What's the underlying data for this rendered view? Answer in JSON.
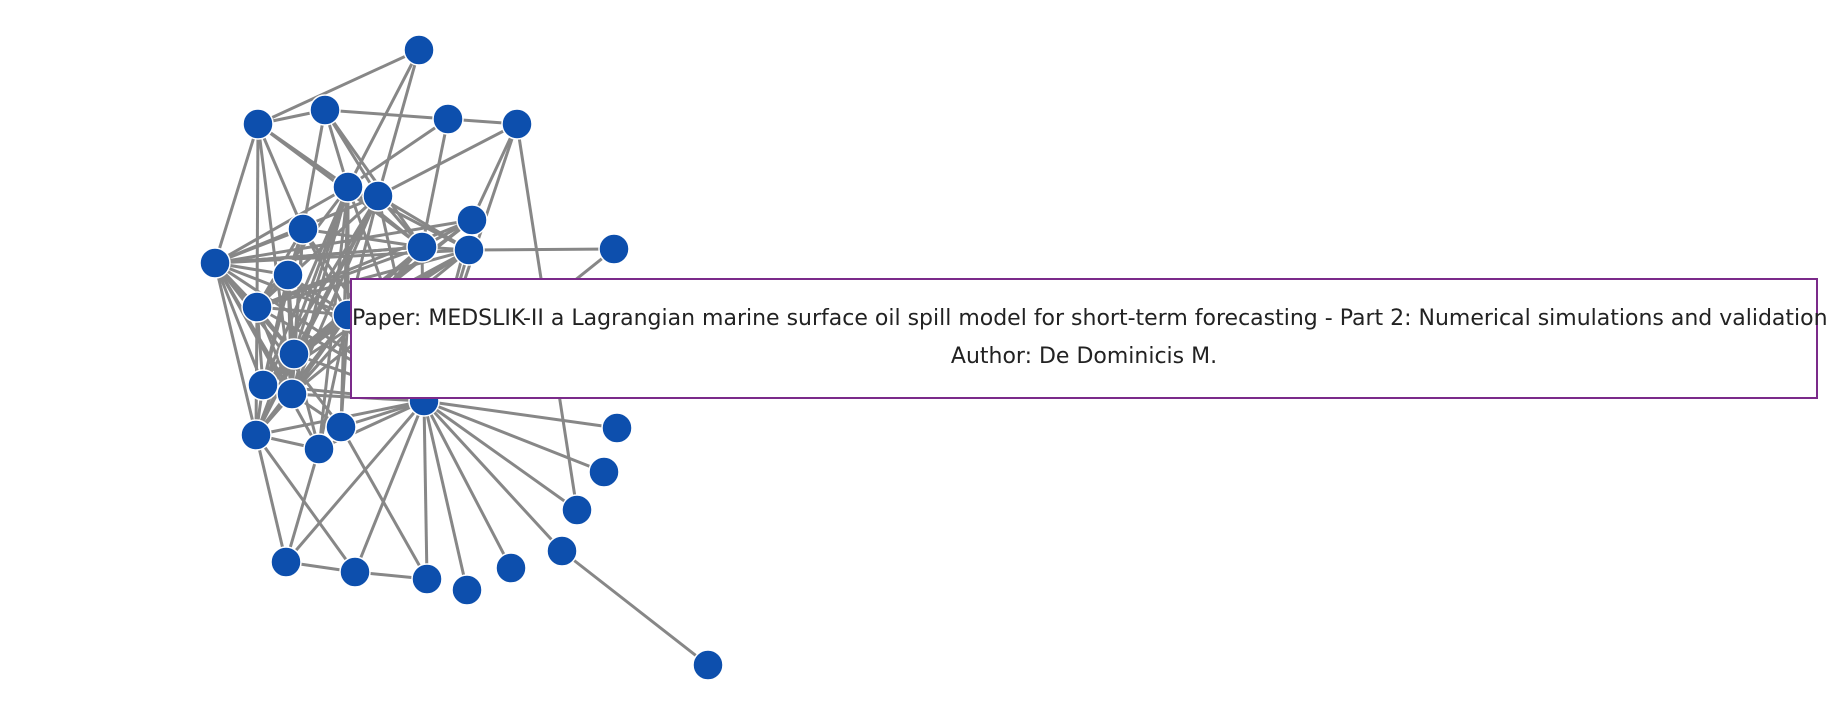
{
  "tooltip": {
    "paper_label": "Paper:",
    "paper_title": "MEDSLIK-II a Lagrangian marine surface oil spill model for short-term forecasting - Part 2: Numerical simulations and validations",
    "author_label": "Author:",
    "author_name": "De Dominicis M."
  },
  "colors": {
    "node": "#0d4fad",
    "edge": "#878787",
    "tooltip_border": "#7b2a8a"
  }
}
